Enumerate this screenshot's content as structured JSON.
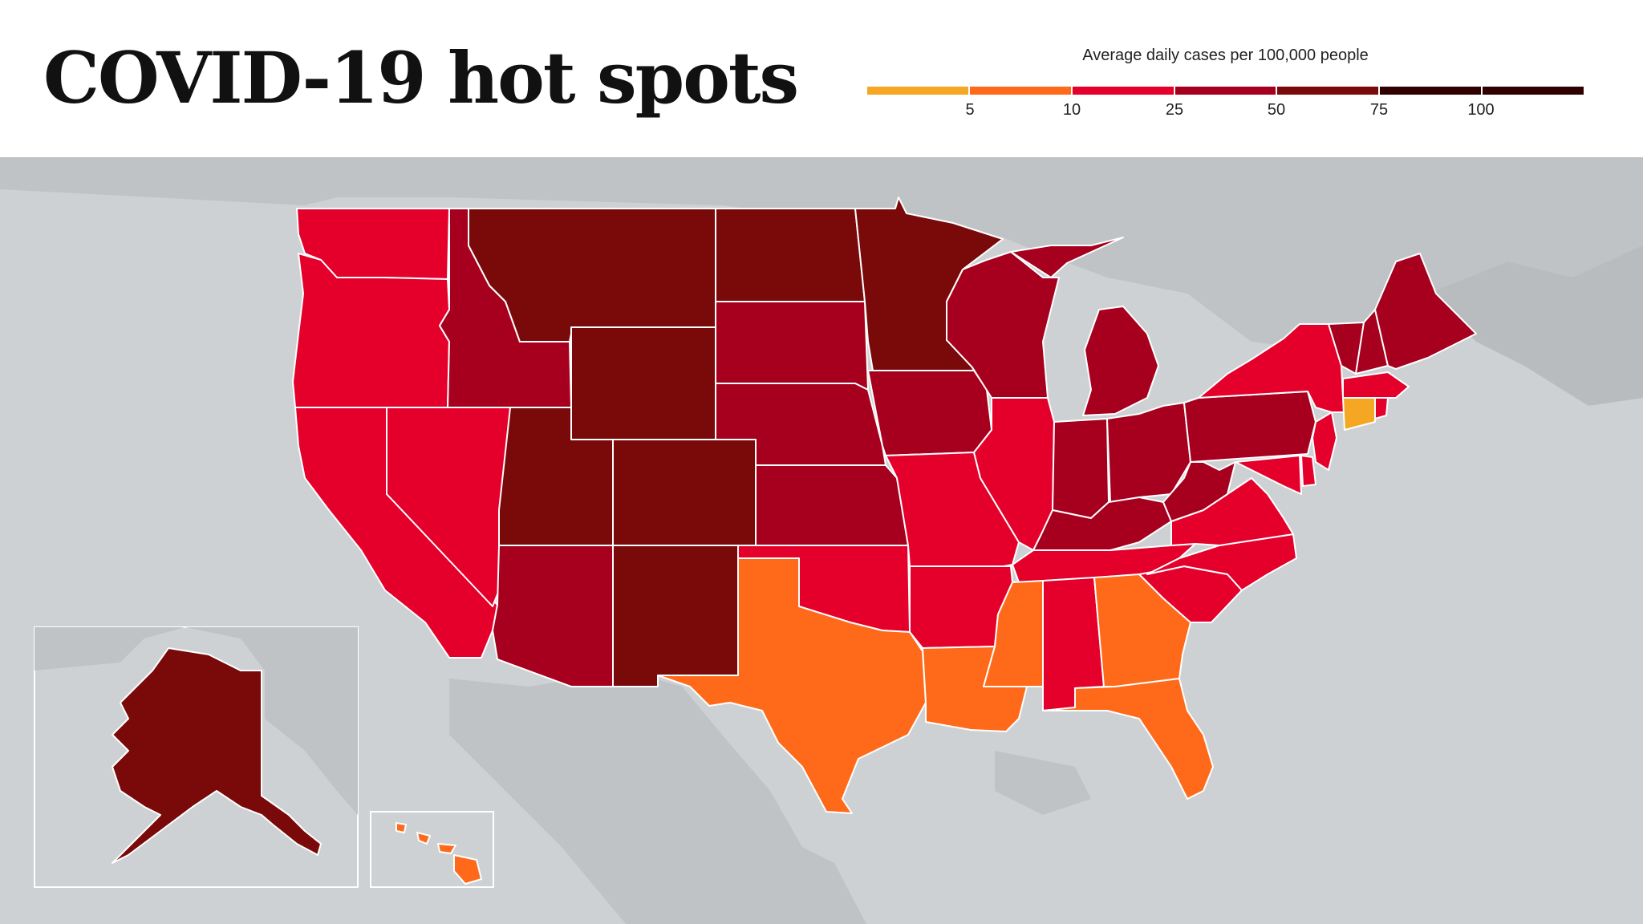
{
  "title": "COVID-19 hot spots",
  "legend": {
    "title": "Average daily cases per 100,000 people",
    "ticks": [
      "5",
      "10",
      "25",
      "50",
      "75",
      "100"
    ],
    "colors": [
      "#f5a623",
      "#ff6a1a",
      "#e4002b",
      "#a6001e",
      "#7a0a0a",
      "#300000"
    ]
  },
  "map_colors": {
    "background_land": "#bfc3c6",
    "background_water": "#cfd3d6",
    "tier_orange": "#ff6a1a",
    "tier_light_orange": "#f5a623",
    "tier_red": "#e4002b",
    "tier_dark_red": "#a6001e",
    "tier_darkest": "#7a0a0a"
  }
}
